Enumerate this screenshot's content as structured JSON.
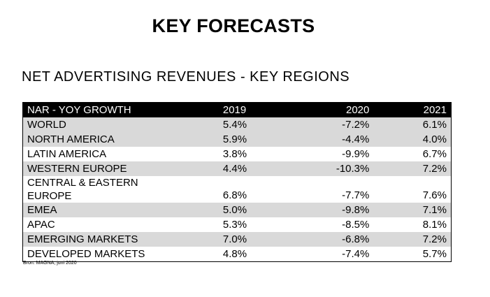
{
  "title": "KEY FORECASTS",
  "subtitle": "NET ADVERTISING REVENUES - KEY REGIONS",
  "table": {
    "headers": [
      "NAR - YOY GROWTH",
      "2019",
      "2020",
      "2021"
    ],
    "rows": [
      {
        "label_lines": [
          "WORLD"
        ],
        "v2019": "5.4%",
        "v2020": "-7.2%",
        "v2021": "6.1%",
        "shaded": true
      },
      {
        "label_lines": [
          "NORTH AMERICA"
        ],
        "v2019": "5.9%",
        "v2020": "-4.4%",
        "v2021": "4.0%",
        "shaded": true
      },
      {
        "label_lines": [
          "LATIN AMERICA"
        ],
        "v2019": "3.8%",
        "v2020": "-9.9%",
        "v2021": "6.7%",
        "shaded": false
      },
      {
        "label_lines": [
          "WESTERN EUROPE"
        ],
        "v2019": "4.4%",
        "v2020": "-10.3%",
        "v2021": "7.2%",
        "shaded": true
      },
      {
        "label_lines": [
          "CENTRAL & EASTERN",
          "EUROPE"
        ],
        "v2019": "6.8%",
        "v2020": "-7.7%",
        "v2021": "7.6%",
        "shaded": false
      },
      {
        "label_lines": [
          "EMEA"
        ],
        "v2019": "5.0%",
        "v2020": "-9.8%",
        "v2021": "7.1%",
        "shaded": true
      },
      {
        "label_lines": [
          "APAC"
        ],
        "v2019": "5.3%",
        "v2020": "-8.5%",
        "v2021": "8.1%",
        "shaded": false
      },
      {
        "label_lines": [
          "EMERGING MARKETS"
        ],
        "v2019": "7.0%",
        "v2020": "-6.8%",
        "v2021": "7.2%",
        "shaded": true
      },
      {
        "label_lines": [
          "DEVELOPED MARKETS"
        ],
        "v2019": "4.8%",
        "v2020": "-7.4%",
        "v2021": "5.7%",
        "shaded": false
      }
    ]
  },
  "source": "Bron: MAGNA, juni 2020",
  "colors": {
    "header_bg": "#000000",
    "header_text": "#ffffff",
    "row_shade": "#d9d9d9"
  }
}
